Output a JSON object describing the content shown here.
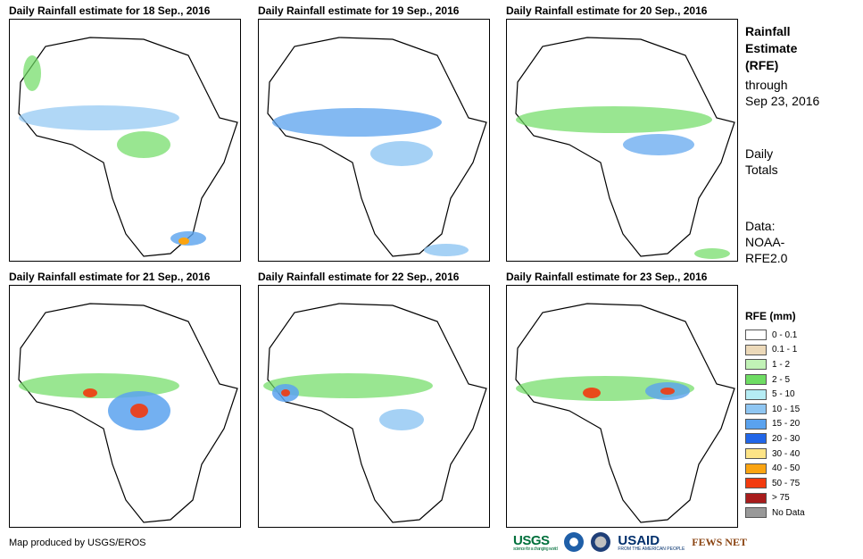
{
  "panels": [
    {
      "title": "Daily Rainfall estimate for 18 Sep., 2016"
    },
    {
      "title": "Daily Rainfall estimate for 19 Sep., 2016"
    },
    {
      "title": "Daily Rainfall estimate for 20 Sep., 2016"
    },
    {
      "title": "Daily Rainfall estimate for 21 Sep., 2016"
    },
    {
      "title": "Daily Rainfall estimate for 22 Sep., 2016"
    },
    {
      "title": "Daily Rainfall estimate for 23 Sep., 2016"
    }
  ],
  "sidebar": {
    "heading_line1": "Rainfall",
    "heading_line2": "Estimate",
    "heading_line3": "(RFE)",
    "through_label": "through",
    "through_date": "Sep 23, 2016",
    "totals_line1": "Daily",
    "totals_line2": "Totals",
    "data_line1": "Data:",
    "data_line2": "NOAA-",
    "data_line3": "RFE2.0"
  },
  "legend": {
    "title": "RFE (mm)",
    "items": [
      {
        "label": "0 - 0.1",
        "color": "#ffffff"
      },
      {
        "label": "0.1 - 1",
        "color": "#ecd9b9"
      },
      {
        "label": "1 - 2",
        "color": "#c1f2b6"
      },
      {
        "label": "2 - 5",
        "color": "#6edc63"
      },
      {
        "label": "5 - 10",
        "color": "#b5ecf4"
      },
      {
        "label": "10 - 15",
        "color": "#8fc6f2"
      },
      {
        "label": "15 - 20",
        "color": "#5aa2ee"
      },
      {
        "label": "20 - 30",
        "color": "#2166e8"
      },
      {
        "label": "30 - 40",
        "color": "#fde486"
      },
      {
        "label": "40 - 50",
        "color": "#fba411"
      },
      {
        "label": "50 - 75",
        "color": "#f23a0e"
      },
      {
        "label": "> 75",
        "color": "#a81c1c"
      },
      {
        "label": "No Data",
        "color": "#999999"
      }
    ]
  },
  "footer": {
    "credit": "Map produced by USGS/EROS",
    "logos": {
      "usgs": "USGS",
      "usgs_tagline": "science for a changing world",
      "usaid": "USAID",
      "usaid_tagline": "FROM THE AMERICAN PEOPLE",
      "fews": "FEWS NET"
    }
  }
}
